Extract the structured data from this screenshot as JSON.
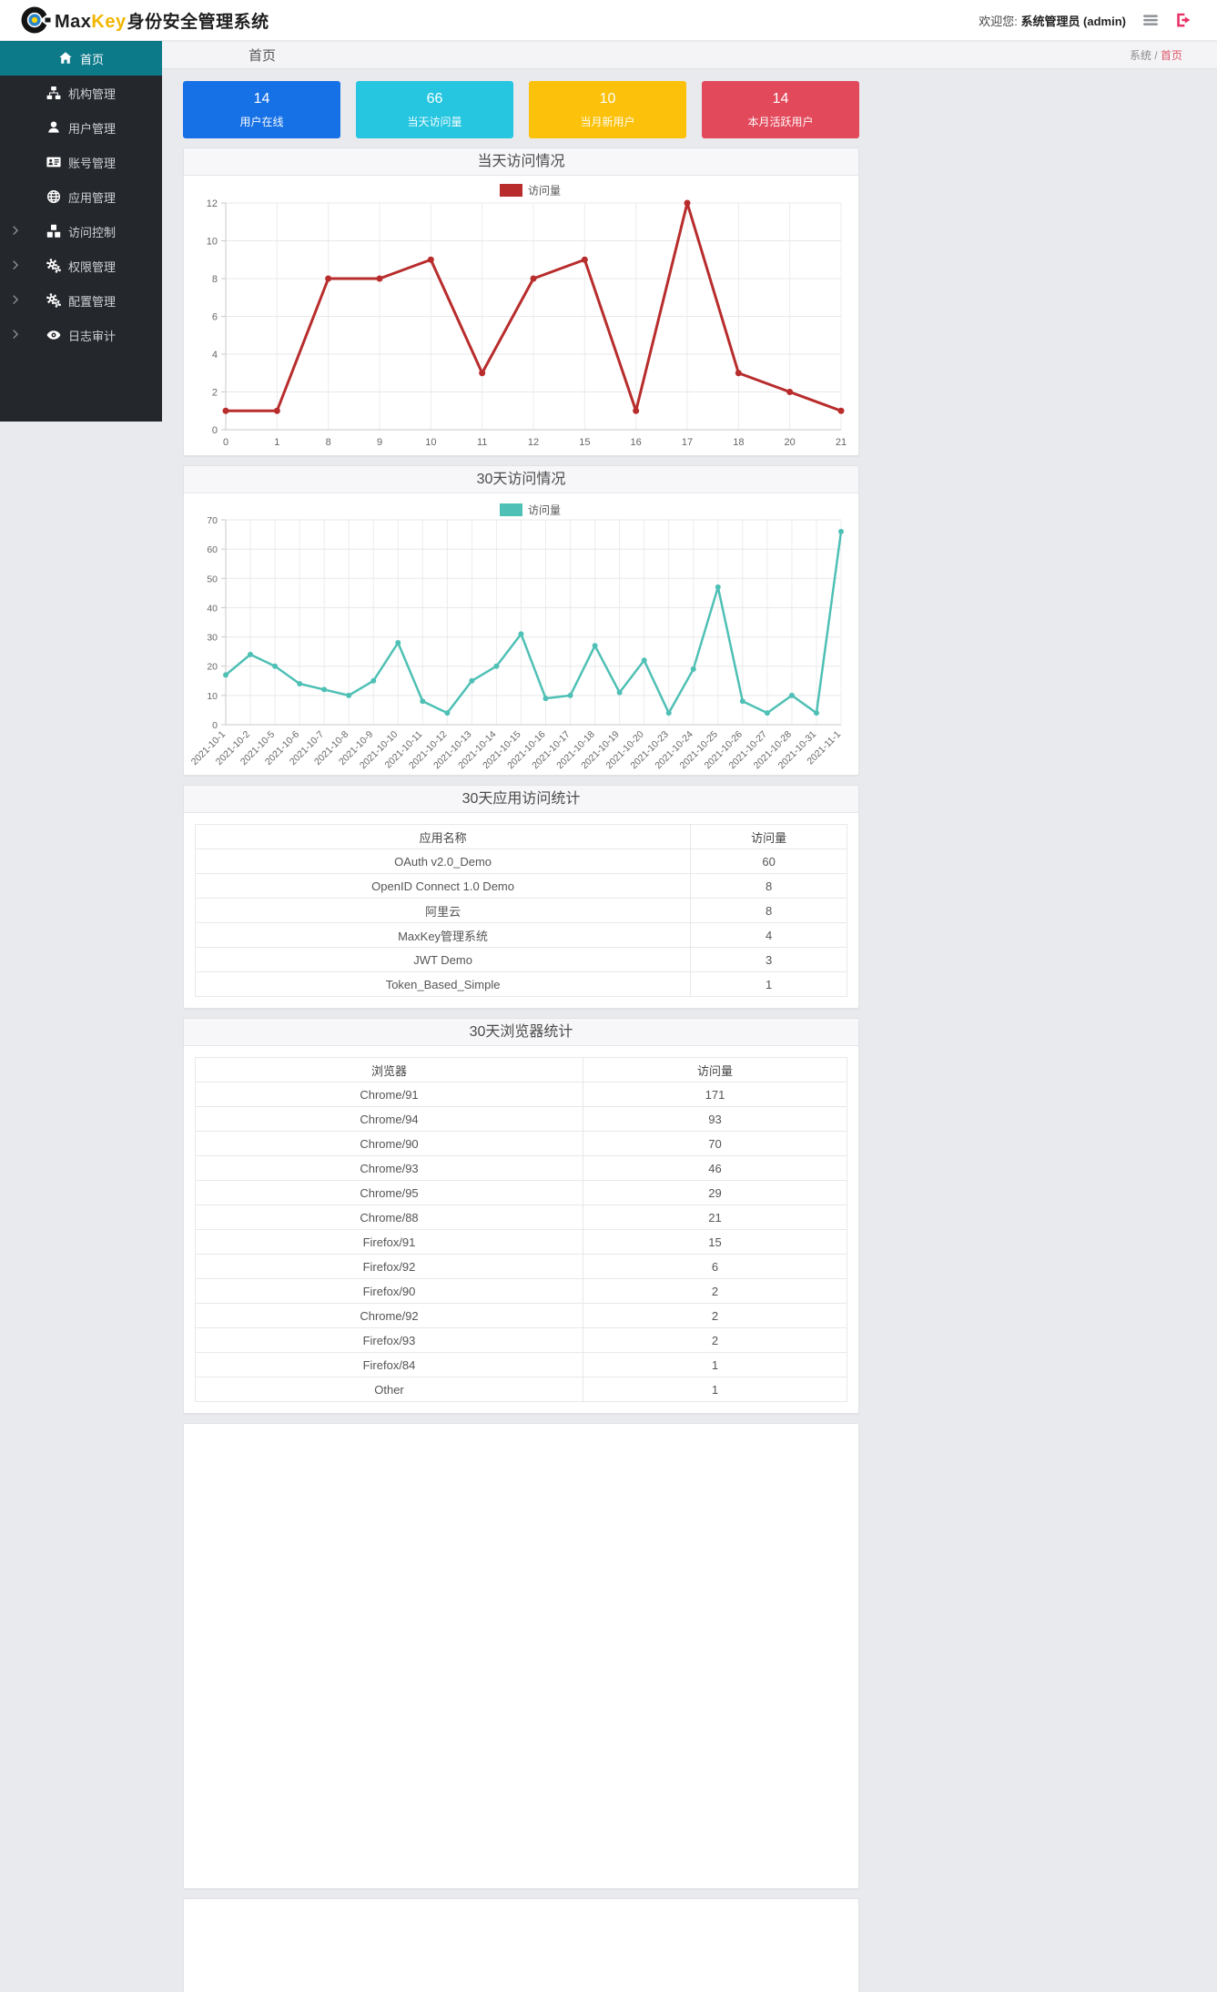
{
  "header": {
    "brand_max": "Max",
    "brand_key": "Key",
    "brand_suffix": "身份安全管理系统",
    "welcome_prefix": "欢迎您:",
    "welcome_user": "系统管理员 (admin)"
  },
  "sidebar": {
    "items": [
      {
        "label": "首页",
        "icon": "home-icon",
        "active": true,
        "expandable": false
      },
      {
        "label": "机构管理",
        "icon": "sitemap-icon",
        "active": false,
        "expandable": false
      },
      {
        "label": "用户管理",
        "icon": "user-icon",
        "active": false,
        "expandable": false
      },
      {
        "label": "账号管理",
        "icon": "idcard-icon",
        "active": false,
        "expandable": false
      },
      {
        "label": "应用管理",
        "icon": "globe-icon",
        "active": false,
        "expandable": false
      },
      {
        "label": "访问控制",
        "icon": "cubes-icon",
        "active": false,
        "expandable": true
      },
      {
        "label": "权限管理",
        "icon": "cogs-icon",
        "active": false,
        "expandable": true
      },
      {
        "label": "配置管理",
        "icon": "cogs-icon",
        "active": false,
        "expandable": true
      },
      {
        "label": "日志审计",
        "icon": "eye-icon",
        "active": false,
        "expandable": true
      }
    ]
  },
  "breadcrumb": {
    "page_title": "首页",
    "root": "系统",
    "separator": " / ",
    "current": "首页"
  },
  "stat_cards": [
    {
      "value": "14",
      "label": "用户在线",
      "color": "#1771e6"
    },
    {
      "value": "66",
      "label": "当天访问量",
      "color": "#26c6e0"
    },
    {
      "value": "10",
      "label": "当月新用户",
      "color": "#fcc10a"
    },
    {
      "value": "14",
      "label": "本月活跃用户",
      "color": "#e24a5c"
    }
  ],
  "chart_data": [
    {
      "type": "line",
      "title": "当天访问情况",
      "legend": "访问量",
      "color": "#b82c2c",
      "categories": [
        "0",
        "1",
        "8",
        "9",
        "10",
        "11",
        "12",
        "15",
        "16",
        "17",
        "18",
        "20",
        "21"
      ],
      "values": [
        1,
        1,
        8,
        8,
        9,
        3,
        8,
        9,
        1,
        12,
        3,
        2,
        1
      ],
      "xlabel": "",
      "ylabel": "",
      "ylim": [
        0,
        12
      ],
      "ystep": 2,
      "grid": true,
      "legend_position": "top",
      "label_rotation": 0
    },
    {
      "type": "line",
      "title": "30天访问情况",
      "legend": "访问量",
      "color": "#4fc0b5",
      "categories": [
        "2021-10-1",
        "2021-10-2",
        "2021-10-5",
        "2021-10-6",
        "2021-10-7",
        "2021-10-8",
        "2021-10-9",
        "2021-10-10",
        "2021-10-11",
        "2021-10-12",
        "2021-10-13",
        "2021-10-14",
        "2021-10-15",
        "2021-10-16",
        "2021-10-17",
        "2021-10-18",
        "2021-10-19",
        "2021-10-20",
        "2021-10-23",
        "2021-10-24",
        "2021-10-25",
        "2021-10-26",
        "2021-10-27",
        "2021-10-28",
        "2021-10-31",
        "2021-11-1"
      ],
      "values": [
        17,
        24,
        20,
        14,
        12,
        10,
        15,
        28,
        8,
        4,
        15,
        20,
        31,
        9,
        10,
        27,
        11,
        22,
        4,
        19,
        47,
        8,
        4,
        10,
        4,
        66
      ],
      "xlabel": "",
      "ylabel": "",
      "ylim": [
        0,
        70
      ],
      "ystep": 10,
      "grid": true,
      "legend_position": "top",
      "label_rotation": -45
    }
  ],
  "app_table": {
    "title": "30天应用访问统计",
    "headers": [
      "应用名称",
      "访问量"
    ],
    "rows": [
      [
        "OAuth v2.0_Demo",
        "60"
      ],
      [
        "OpenID Connect 1.0 Demo",
        "8"
      ],
      [
        "阿里云",
        "8"
      ],
      [
        "MaxKey管理系统",
        "4"
      ],
      [
        "JWT Demo",
        "3"
      ],
      [
        "Token_Based_Simple",
        "1"
      ]
    ]
  },
  "browser_table": {
    "title": "30天浏览器统计",
    "headers": [
      "浏览器",
      "访问量"
    ],
    "rows": [
      [
        "Chrome/91",
        "171"
      ],
      [
        "Chrome/94",
        "93"
      ],
      [
        "Chrome/90",
        "70"
      ],
      [
        "Chrome/93",
        "46"
      ],
      [
        "Chrome/95",
        "29"
      ],
      [
        "Chrome/88",
        "21"
      ],
      [
        "Firefox/91",
        "15"
      ],
      [
        "Firefox/92",
        "6"
      ],
      [
        "Firefox/90",
        "2"
      ],
      [
        "Chrome/92",
        "2"
      ],
      [
        "Firefox/93",
        "2"
      ],
      [
        "Firefox/84",
        "1"
      ],
      [
        "Other",
        "1"
      ]
    ]
  }
}
